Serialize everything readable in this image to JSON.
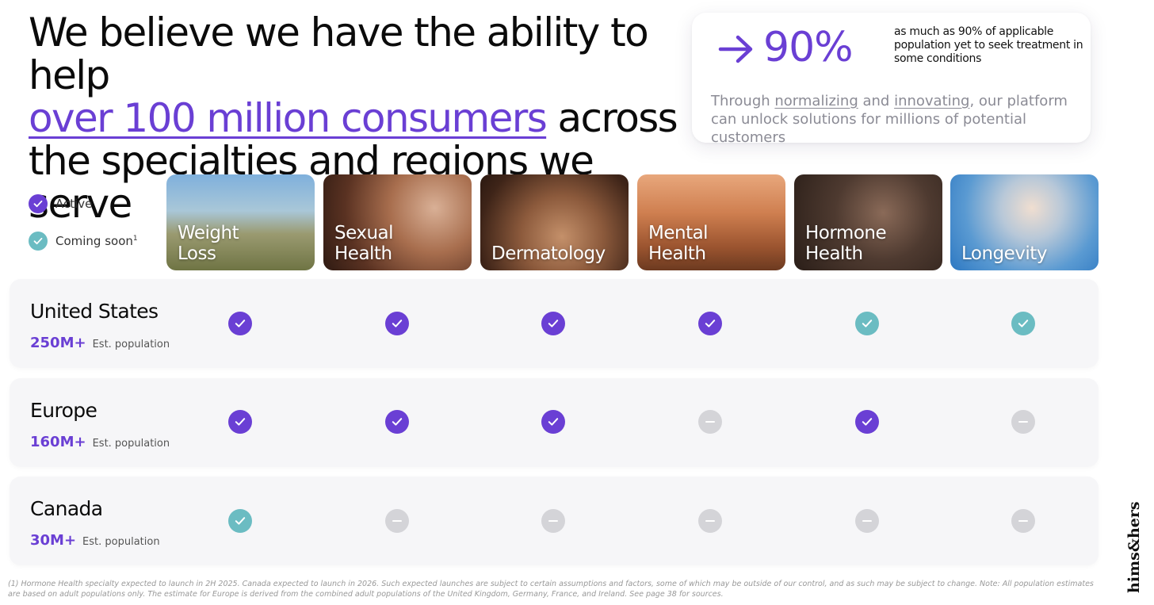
{
  "headline": {
    "line1": "We believe we have the ability to help",
    "highlight": "over 100 million consumers",
    "after_highlight": " across",
    "line3": "the specialties and regions we serve"
  },
  "stat": {
    "value": "90%",
    "description": "as much as 90% of applicable population yet to seek treatment in some conditions",
    "body_pre": "Through ",
    "body_u1": "normalizing",
    "body_mid": " and ",
    "body_u2": "innovating",
    "body_post": ", our platform can unlock solutions for millions of potential customers"
  },
  "legend": {
    "active": "Active",
    "coming_soon": "Coming soon",
    "coming_soon_sup": "1"
  },
  "specialties": [
    {
      "line1": "Weight",
      "line2": "Loss"
    },
    {
      "line1": "Sexual",
      "line2": "Health"
    },
    {
      "line1": "",
      "line2": "Dermatology"
    },
    {
      "line1": "Mental",
      "line2": "Health"
    },
    {
      "line1": "Hormone",
      "line2": "Health"
    },
    {
      "line1": "",
      "line2": "Longevity"
    }
  ],
  "regions": [
    {
      "name": "United States",
      "population": "250M+",
      "pop_label": "Est. population",
      "status": [
        "active",
        "active",
        "active",
        "active",
        "soon",
        "soon"
      ]
    },
    {
      "name": "Europe",
      "population": "160M+",
      "pop_label": "Est. population",
      "status": [
        "active",
        "active",
        "active",
        "na",
        "active",
        "na"
      ]
    },
    {
      "name": "Canada",
      "population": "30M+",
      "pop_label": "Est. population",
      "status": [
        "soon",
        "na",
        "na",
        "na",
        "na",
        "na"
      ]
    }
  ],
  "footnote": "(1) Hormone Health specialty expected to launch in 2H 2025. Canada expected to launch in 2026. Such expected launches are subject to certain assumptions and factors, some of which may be outside of our control, and as such may be subject to change. Note: All population estimates are based on adult populations only. The estimate for Europe is derived from the combined adult populations of the United Kingdom, Germany, France, and Ireland. See page 38 for sources.",
  "logo_text": "hims&hers",
  "colors": {
    "accent": "#6a3fd4",
    "soon": "#6bbcc2",
    "unavailable": "#d4d4d8"
  }
}
